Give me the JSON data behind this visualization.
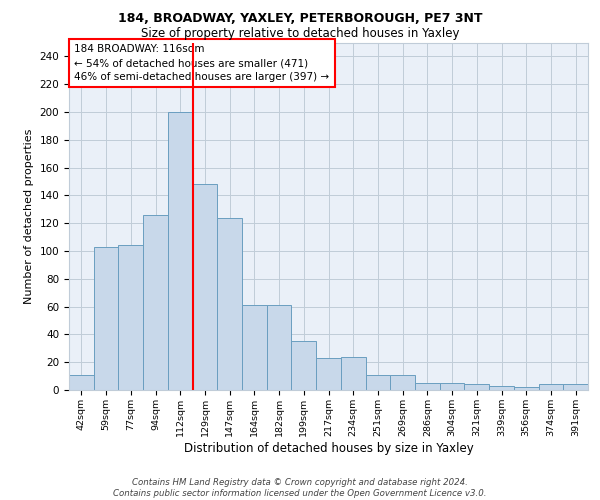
{
  "title1": "184, BROADWAY, YAXLEY, PETERBOROUGH, PE7 3NT",
  "title2": "Size of property relative to detached houses in Yaxley",
  "xlabel": "Distribution of detached houses by size in Yaxley",
  "ylabel": "Number of detached properties",
  "bar_labels": [
    "42sqm",
    "59sqm",
    "77sqm",
    "94sqm",
    "112sqm",
    "129sqm",
    "147sqm",
    "164sqm",
    "182sqm",
    "199sqm",
    "217sqm",
    "234sqm",
    "251sqm",
    "269sqm",
    "286sqm",
    "304sqm",
    "321sqm",
    "339sqm",
    "356sqm",
    "374sqm",
    "391sqm"
  ],
  "bar_values": [
    11,
    103,
    104,
    126,
    200,
    148,
    124,
    61,
    61,
    35,
    23,
    24,
    11,
    11,
    5,
    5,
    4,
    3,
    2,
    4,
    4
  ],
  "bar_color": "#c8d8ea",
  "bar_edgecolor": "#6a9ec0",
  "vline_x": 4.5,
  "vline_color": "red",
  "annotation_text": "184 BROADWAY: 116sqm\n← 54% of detached houses are smaller (471)\n46% of semi-detached houses are larger (397) →",
  "bg_color": "#eaf0f8",
  "grid_color": "#c0ccd8",
  "footer": "Contains HM Land Registry data © Crown copyright and database right 2024.\nContains public sector information licensed under the Open Government Licence v3.0.",
  "ylim": [
    0,
    250
  ],
  "yticks": [
    0,
    20,
    40,
    60,
    80,
    100,
    120,
    140,
    160,
    180,
    200,
    220,
    240
  ]
}
